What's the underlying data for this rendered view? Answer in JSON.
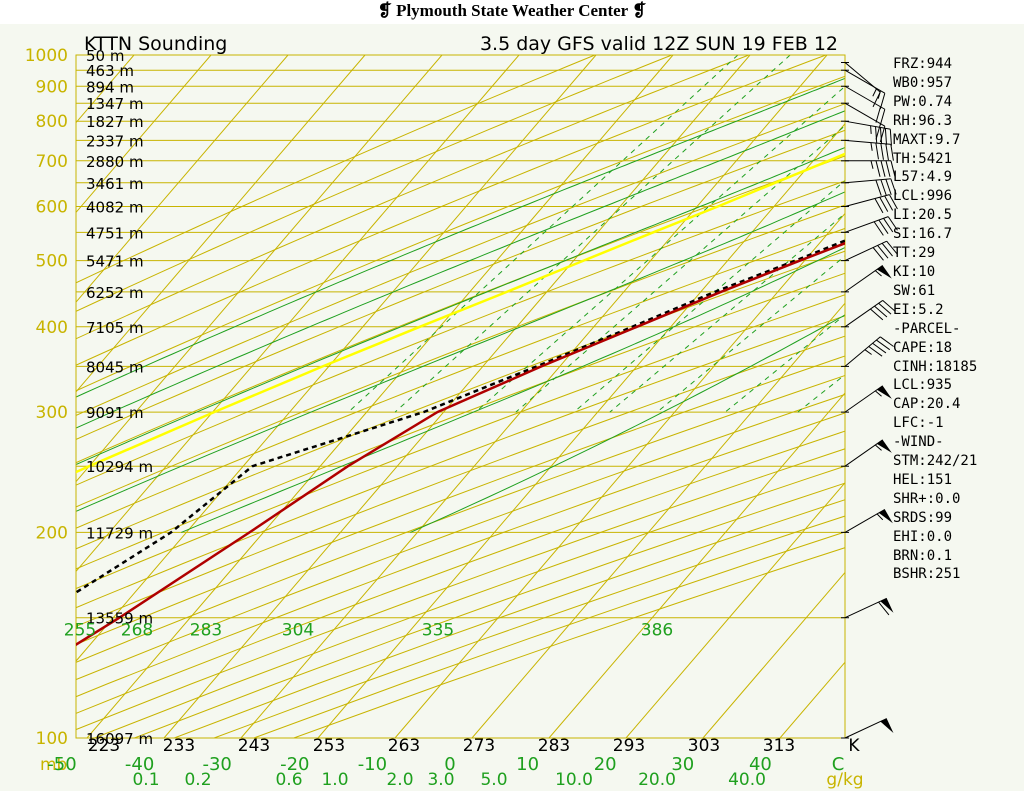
{
  "header": {
    "title": "Plymouth State Weather Center",
    "station_label": "KTTN Sounding",
    "valid_label": "3.5 day GFS valid 12Z SUN 19 FEB 12"
  },
  "indices": [
    "FRZ:944",
    "WB0:957",
    "PW:0.74",
    "RH:96.3",
    "MAXT:9.7",
    "TH:5421",
    "L57:4.9",
    "LCL:996",
    "LI:20.5",
    "SI:16.7",
    "TT:29",
    "KI:10",
    "SW:61",
    "EI:5.2",
    "-PARCEL-",
    "CAPE:18",
    "CINH:18185",
    "LCL:935",
    "CAP:20.4",
    "LFC:-1",
    "-WIND-",
    "STM:242/21",
    "HEL:151",
    "SHR+:0.0",
    "SRDS:99",
    "EHI:0.0",
    "BRN:0.1",
    "BSHR:251"
  ],
  "colors": {
    "temperature": "#b00000",
    "dewpoint": "#000000",
    "parcel": "#ffff00",
    "isobar": "#c8b400",
    "adiabat": "#1fa01f",
    "background": "#f5f8f0"
  },
  "chart_data": {
    "type": "skew-T log-P sounding",
    "title": "KTTN Sounding",
    "subtitle": "3.5 day GFS valid 12Z SUN 19 FEB 12",
    "xlabel": "°C",
    "ylabel": "mb",
    "xlim": [
      -50,
      50
    ],
    "ylim": [
      1000,
      100
    ],
    "pressure_ticks": [
      {
        "p": 100,
        "label": "100"
      },
      {
        "p": 200,
        "label": "200"
      },
      {
        "p": 300,
        "label": "300"
      },
      {
        "p": 400,
        "label": "400"
      },
      {
        "p": 500,
        "label": "500"
      },
      {
        "p": 600,
        "label": "600"
      },
      {
        "p": 700,
        "label": "700"
      },
      {
        "p": 800,
        "label": "800"
      },
      {
        "p": 900,
        "label": "900"
      },
      {
        "p": 1000,
        "label": "1000"
      }
    ],
    "unit_label": "mb",
    "heights": [
      {
        "p": 100,
        "label": "16097 m"
      },
      {
        "p": 150,
        "label": "13559 m"
      },
      {
        "p": 200,
        "label": "11729 m"
      },
      {
        "p": 250,
        "label": "10294 m"
      },
      {
        "p": 300,
        "label": "9091 m"
      },
      {
        "p": 350,
        "label": "8045 m"
      },
      {
        "p": 400,
        "label": "7105 m"
      },
      {
        "p": 450,
        "label": "6252 m"
      },
      {
        "p": 500,
        "label": "5471 m"
      },
      {
        "p": 550,
        "label": "4751 m"
      },
      {
        "p": 600,
        "label": "4082 m"
      },
      {
        "p": 650,
        "label": "3461 m"
      },
      {
        "p": 700,
        "label": "2880 m"
      },
      {
        "p": 750,
        "label": "2337 m"
      },
      {
        "p": 800,
        "label": "1827 m"
      },
      {
        "p": 850,
        "label": "1347 m"
      },
      {
        "p": 900,
        "label": "894 m"
      },
      {
        "p": 950,
        "label": "463 m"
      },
      {
        "p": 1000,
        "label": "50 m"
      }
    ],
    "temp_ticks": [
      "-50",
      "-40",
      "-30",
      "-20",
      "-10",
      "0",
      "10",
      "20",
      "30",
      "40",
      "C"
    ],
    "mixing_ratio_ticks": [
      "0.1",
      "0.2",
      "0.6",
      "1.0",
      "2.0",
      "3.0",
      "5.0",
      "10.0",
      "20.0",
      "40.0"
    ],
    "mixing_ratio_unit": "g/kg",
    "theta_ticks_bottom": [
      "223",
      "233",
      "243",
      "253",
      "263",
      "273",
      "283",
      "293",
      "303",
      "313",
      "K"
    ],
    "theta_e_labels": [
      "255",
      "268",
      "283",
      "304",
      "335",
      "386"
    ],
    "temperature_profile": [
      {
        "p": 1000,
        "t": 1.6
      },
      {
        "p": 975,
        "t": 1.4
      },
      {
        "p": 950,
        "t": 1.8
      },
      {
        "p": 925,
        "t": 0.8
      },
      {
        "p": 900,
        "t": 1.6
      },
      {
        "p": 875,
        "t": 3.6
      },
      {
        "p": 850,
        "t": 5.2
      },
      {
        "p": 800,
        "t": 8.0
      },
      {
        "p": 750,
        "t": 8.6
      },
      {
        "p": 700,
        "t": 7.6
      },
      {
        "p": 650,
        "t": 4.5
      },
      {
        "p": 600,
        "t": 1.2
      },
      {
        "p": 550,
        "t": -4.2
      },
      {
        "p": 500,
        "t": -10.6
      },
      {
        "p": 450,
        "t": -17.4
      },
      {
        "p": 400,
        "t": -24.4
      },
      {
        "p": 350,
        "t": -32.4
      },
      {
        "p": 300,
        "t": -40.8
      },
      {
        "p": 250,
        "t": -46.4
      },
      {
        "p": 200,
        "t": -51.8
      },
      {
        "p": 150,
        "t": -59.2
      },
      {
        "p": 100,
        "t": -71.0
      }
    ],
    "dewpoint_profile": [
      {
        "p": 1000,
        "t": 1.5
      },
      {
        "p": 975,
        "t": 1.2
      },
      {
        "p": 950,
        "t": 1.2
      },
      {
        "p": 925,
        "t": 0.6
      },
      {
        "p": 900,
        "t": 1.4
      },
      {
        "p": 875,
        "t": 2.8
      },
      {
        "p": 850,
        "t": 4.6
      },
      {
        "p": 800,
        "t": 7.4
      },
      {
        "p": 750,
        "t": 8.4
      },
      {
        "p": 700,
        "t": 7.5
      },
      {
        "p": 650,
        "t": 4.4
      },
      {
        "p": 600,
        "t": 1.2
      },
      {
        "p": 550,
        "t": -5.2
      },
      {
        "p": 500,
        "t": -11.2
      },
      {
        "p": 450,
        "t": -18.2
      },
      {
        "p": 400,
        "t": -25.0
      },
      {
        "p": 350,
        "t": -33.0
      },
      {
        "p": 300,
        "t": -42.6
      },
      {
        "p": 250,
        "t": -58.8
      },
      {
        "p": 200,
        "t": -62.0
      },
      {
        "p": 150,
        "t": -70.0
      },
      {
        "p": 100,
        "t": -83.4
      }
    ],
    "parcel_path": [
      {
        "p": 1000,
        "t": 2.1
      },
      {
        "p": 950,
        "t": -0.7
      },
      {
        "p": 900,
        "t": -3.8
      },
      {
        "p": 850,
        "t": -6.7
      },
      {
        "p": 800,
        "t": -10.0
      },
      {
        "p": 750,
        "t": -14.0
      },
      {
        "p": 700,
        "t": -18.0
      },
      {
        "p": 650,
        "t": -22.5
      },
      {
        "p": 600,
        "t": -27.3
      },
      {
        "p": 550,
        "t": -32.8
      },
      {
        "p": 500,
        "t": -38.7
      },
      {
        "p": 450,
        "t": -45.2
      },
      {
        "p": 400,
        "t": -52.6
      },
      {
        "p": 350,
        "t": -60.8
      },
      {
        "p": 300,
        "t": -69.8
      },
      {
        "p": 250,
        "t": -80.0
      },
      {
        "p": 200,
        "t": -92.0
      },
      {
        "p": 150,
        "t": -106.0
      },
      {
        "p": 130,
        "t": -113.0
      }
    ],
    "winds": [
      {
        "p": 100,
        "dir": 245,
        "kt": 50
      },
      {
        "p": 150,
        "dir": 245,
        "kt": 60
      },
      {
        "p": 200,
        "dir": 240,
        "kt": 55
      },
      {
        "p": 250,
        "dir": 235,
        "kt": 55
      },
      {
        "p": 300,
        "dir": 235,
        "kt": 55
      },
      {
        "p": 350,
        "dir": 230,
        "kt": 45
      },
      {
        "p": 400,
        "dir": 235,
        "kt": 40
      },
      {
        "p": 450,
        "dir": 235,
        "kt": 55
      },
      {
        "p": 500,
        "dir": 245,
        "kt": 40
      },
      {
        "p": 550,
        "dir": 250,
        "kt": 40
      },
      {
        "p": 600,
        "dir": 255,
        "kt": 40
      },
      {
        "p": 650,
        "dir": 265,
        "kt": 40
      },
      {
        "p": 700,
        "dir": 270,
        "kt": 45
      },
      {
        "p": 750,
        "dir": 275,
        "kt": 45
      },
      {
        "p": 800,
        "dir": 280,
        "kt": 45
      },
      {
        "p": 850,
        "dir": 300,
        "kt": 20
      },
      {
        "p": 900,
        "dir": 300,
        "kt": 20
      },
      {
        "p": 950,
        "dir": 300,
        "kt": 15
      },
      {
        "p": 975,
        "dir": 310,
        "kt": 15
      }
    ]
  }
}
